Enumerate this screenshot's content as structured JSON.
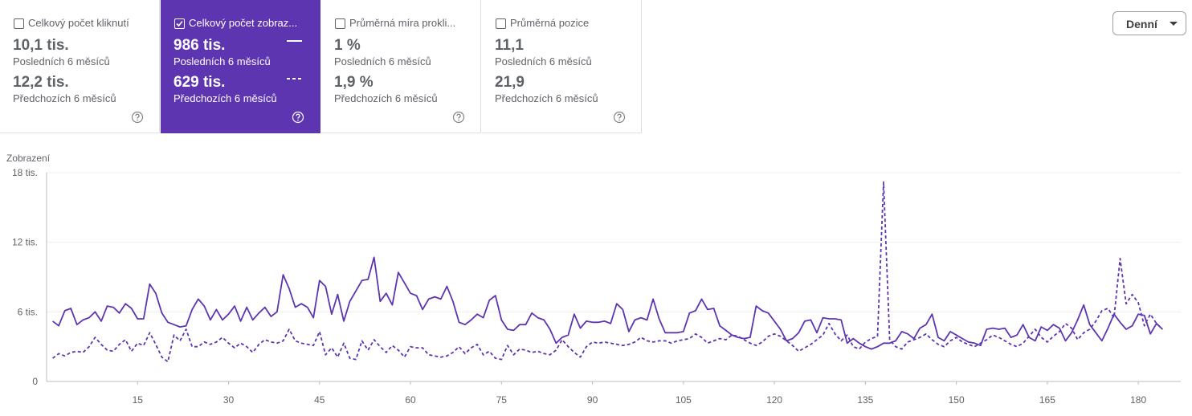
{
  "cards": [
    {
      "title": "Celkový počet kliknutí",
      "checked": false,
      "current": "10,1 tis.",
      "current_label": "Posledních 6 měsíců",
      "previous": "12,2 tis.",
      "previous_label": "Předchozích 6 měsíců"
    },
    {
      "title": "Celkový počet zobraz...",
      "checked": true,
      "current": "986 tis.",
      "current_label": "Posledních 6 měsíců",
      "previous": "629 tis.",
      "previous_label": "Předchozích 6 měsíců"
    },
    {
      "title": "Průměrná míra prokli...",
      "checked": false,
      "current": "1 %",
      "current_label": "Posledních 6 měsíců",
      "previous": "1,9 %",
      "previous_label": "Předchozích 6 měsíců"
    },
    {
      "title": "Průměrná pozice",
      "checked": false,
      "current": "11,1",
      "current_label": "Posledních 6 měsíců",
      "previous": "21,9",
      "previous_label": "Předchozích 6 měsíců"
    }
  ],
  "dropdown": "Denní",
  "chart_data": {
    "type": "line",
    "y_label": "Zobrazení",
    "grid": true,
    "x": [
      1,
      2,
      3,
      4,
      5,
      6,
      7,
      8,
      9,
      10,
      11,
      12,
      13,
      14,
      15,
      16,
      17,
      18,
      19,
      20,
      21,
      22,
      23,
      24,
      25,
      26,
      27,
      28,
      29,
      30,
      31,
      32,
      33,
      34,
      35,
      36,
      37,
      38,
      39,
      40,
      41,
      42,
      43,
      44,
      45,
      46,
      47,
      48,
      49,
      50,
      51,
      52,
      53,
      54,
      55,
      56,
      57,
      58,
      59,
      60,
      61,
      62,
      63,
      64,
      65,
      66,
      67,
      68,
      69,
      70,
      71,
      72,
      73,
      74,
      75,
      76,
      77,
      78,
      79,
      80,
      81,
      82,
      83,
      84,
      85,
      86,
      87,
      88,
      89,
      90,
      91,
      92,
      93,
      94,
      95,
      96,
      97,
      98,
      99,
      100,
      101,
      102,
      103,
      104,
      105,
      106,
      107,
      108,
      109,
      110,
      111,
      112,
      113,
      114,
      115,
      116,
      117,
      118,
      119,
      120,
      121,
      122,
      123,
      124,
      125,
      126,
      127,
      128,
      129,
      130,
      131,
      132,
      133,
      134,
      135,
      136,
      137,
      138,
      139,
      140,
      141,
      142,
      143,
      144,
      145,
      146,
      147,
      148,
      149,
      150,
      151,
      152,
      153,
      154,
      155,
      156,
      157,
      158,
      159,
      160,
      161,
      162,
      163,
      164,
      165,
      166,
      167,
      168,
      169,
      170,
      171,
      172,
      173,
      174,
      175,
      176,
      177,
      178,
      179,
      180,
      181,
      182,
      183,
      184
    ],
    "series": [
      {
        "color": "#5e35b1",
        "style": "solid",
        "values": [
          5.2,
          4.8,
          6.1,
          6.3,
          4.9,
          5.3,
          5.5,
          6.0,
          5.2,
          6.5,
          6.4,
          5.9,
          6.7,
          6.3,
          5.4,
          5.4,
          8.4,
          7.6,
          5.9,
          5.1,
          4.9,
          4.7,
          4.8,
          6.2,
          7.1,
          6.5,
          5.3,
          6.2,
          5.3,
          5.8,
          6.5,
          5.2,
          6.4,
          5.3,
          5.9,
          6.4,
          5.6,
          6.0,
          9.2,
          8.0,
          6.4,
          6.7,
          6.4,
          5.5,
          8.7,
          8.2,
          5.8,
          7.5,
          5.2,
          6.9,
          7.8,
          8.7,
          8.8,
          10.7,
          6.9,
          7.6,
          6.6,
          9.4,
          8.5,
          7.6,
          7.4,
          6.2,
          7.1,
          7.3,
          7.1,
          8.2,
          6.9,
          5.1,
          4.9,
          5.3,
          5.8,
          5.5,
          7.0,
          7.4,
          5.3,
          4.5,
          4.4,
          4.9,
          4.9,
          5.9,
          5.5,
          5.3,
          4.5,
          3.3,
          3.8,
          4.0,
          5.8,
          4.6,
          5.2,
          5.1,
          5.1,
          5.2,
          5.0,
          6.7,
          6.2,
          4.3,
          5.3,
          5.5,
          5.3,
          7.1,
          5.4,
          4.2,
          4.2,
          4.2,
          4.3,
          5.9,
          6.1,
          7.1,
          6.2,
          6.3,
          4.8,
          4.4,
          4.0,
          3.8,
          3.7,
          3.8,
          6.5,
          6.1,
          5.9,
          5.2,
          4.5,
          3.5,
          3.7,
          4.2,
          5.2,
          5.3,
          4.2,
          5.5,
          5.4,
          5.4,
          5.3,
          3.3,
          3.7,
          3.3,
          3.0,
          2.8,
          3.0,
          3.3,
          3.3,
          3.5,
          4.3,
          4.1,
          3.7,
          4.6,
          4.9,
          5.8,
          3.8,
          3.5,
          4.3,
          4.0,
          3.7,
          3.4,
          3.3,
          3.1,
          4.5,
          4.6,
          4.5,
          4.6,
          3.8,
          4.0,
          4.9,
          3.8,
          3.5,
          4.7,
          4.4,
          4.9,
          4.6,
          3.5,
          4.2,
          5.3,
          6.6,
          4.9,
          4.2,
          3.5,
          4.6,
          5.8,
          5.1,
          4.5,
          4.8,
          5.8,
          5.7,
          4.1,
          5.0,
          4.5
        ]
      },
      {
        "color": "#5e35b1",
        "style": "dashed",
        "values": [
          2.0,
          2.4,
          2.2,
          2.5,
          2.6,
          2.5,
          3.0,
          3.8,
          3.2,
          2.7,
          2.6,
          3.2,
          3.6,
          2.6,
          3.3,
          3.1,
          4.2,
          3.2,
          2.1,
          1.7,
          4.0,
          3.5,
          4.5,
          3.0,
          3.0,
          3.4,
          3.2,
          3.4,
          3.8,
          3.3,
          2.9,
          3.3,
          3.0,
          2.5,
          3.2,
          3.6,
          3.4,
          3.3,
          3.5,
          4.5,
          3.5,
          3.3,
          3.2,
          3.1,
          4.3,
          2.3,
          2.9,
          2.1,
          3.3,
          2.0,
          1.9,
          3.5,
          2.7,
          3.6,
          3.0,
          2.5,
          3.1,
          2.7,
          2.1,
          3.0,
          2.9,
          2.9,
          2.3,
          2.2,
          2.1,
          2.2,
          2.5,
          3.0,
          2.4,
          2.9,
          3.2,
          2.3,
          2.6,
          2.0,
          1.9,
          3.1,
          2.3,
          2.8,
          2.7,
          2.5,
          2.6,
          2.4,
          2.3,
          2.7,
          3.6,
          3.0,
          2.5,
          2.1,
          3.0,
          3.4,
          3.3,
          3.4,
          3.3,
          3.2,
          3.1,
          3.2,
          3.4,
          3.8,
          3.5,
          3.4,
          3.5,
          3.5,
          3.3,
          3.5,
          3.6,
          3.7,
          4.1,
          3.8,
          3.3,
          3.5,
          3.7,
          3.6,
          4.0,
          3.9,
          3.6,
          3.3,
          3.1,
          3.4,
          3.9,
          4.1,
          3.9,
          3.5,
          3.1,
          2.6,
          2.9,
          3.2,
          3.6,
          4.0,
          5.0,
          4.1,
          3.5,
          4.0,
          3.0,
          2.8,
          3.4,
          3.7,
          3.9,
          17.2,
          3.6,
          3.0,
          2.8,
          3.4,
          3.6,
          3.8,
          4.1,
          3.6,
          3.2,
          3.0,
          3.5,
          3.8,
          3.4,
          3.2,
          3.0,
          3.3,
          3.6,
          4.0,
          3.8,
          3.5,
          3.2,
          3.0,
          3.3,
          3.9,
          4.5,
          3.8,
          3.4,
          3.9,
          4.3,
          5.0,
          4.6,
          3.6,
          4.2,
          4.5,
          5.2,
          6.1,
          6.3,
          5.5,
          10.6,
          6.7,
          7.5,
          6.8,
          4.8,
          5.8,
          5.0,
          4.5
        ]
      }
    ],
    "xlim": [
      0,
      187
    ],
    "xticks": [
      15,
      30,
      45,
      60,
      75,
      90,
      105,
      120,
      135,
      150,
      165,
      180
    ],
    "ylim": [
      0,
      18
    ],
    "yticks": [
      0,
      {
        "value": 6,
        "label": "6 tis."
      },
      {
        "value": 12,
        "label": "12 tis."
      },
      {
        "value": 18,
        "label": "18 tis."
      }
    ]
  }
}
